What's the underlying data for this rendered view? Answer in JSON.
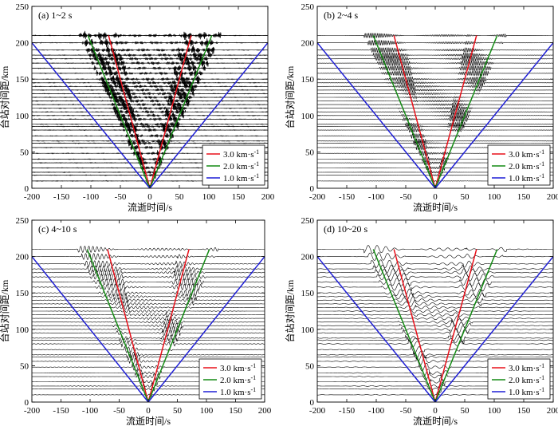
{
  "chart_data": [
    {
      "type": "line",
      "panel": "(a) 1~2 s",
      "xlabel": "流逝时间/s",
      "ylabel": "台站对间距/km",
      "xlim": [
        -200,
        200
      ],
      "ylim": [
        0,
        250
      ],
      "xticks": [
        "-200",
        "-150",
        "-100",
        "-50",
        "0",
        "50",
        "100",
        "150",
        "200"
      ],
      "yticks": [
        "0",
        "50",
        "100",
        "150",
        "200",
        "250"
      ],
      "legend": [
        {
          "label": "3.0 km·s-1",
          "color": "#e8101a",
          "velocity": 3.0
        },
        {
          "label": "2.0 km·s-1",
          "color": "#138a13",
          "velocity": 2.0
        },
        {
          "label": "1.0 km·s-1",
          "color": "#1f1fd6",
          "velocity": 1.0
        }
      ],
      "moveout_lines": [
        {
          "velocity": 3.0,
          "distance_range": [
            0,
            210
          ]
        },
        {
          "velocity": 2.0,
          "distance_range": [
            0,
            210
          ]
        },
        {
          "velocity": 1.0,
          "distance_range": [
            0,
            200
          ]
        }
      ],
      "trace_distances": [
        10,
        18,
        22,
        28,
        35,
        40,
        48,
        56,
        62,
        65,
        72,
        80,
        85,
        88,
        95,
        100,
        105,
        110,
        115,
        120,
        125,
        130,
        135,
        140,
        145,
        150,
        158,
        165,
        172,
        178,
        183,
        190,
        200,
        210
      ],
      "trace_style": "burst",
      "trace_amplitude": 7
    },
    {
      "type": "line",
      "panel": "(b) 2~4 s",
      "xlabel": "流逝时间/s",
      "ylabel": "台站对间距/km",
      "xlim": [
        -200,
        200
      ],
      "ylim": [
        0,
        250
      ],
      "xticks": [
        "-200",
        "-150",
        "-100",
        "-50",
        "0",
        "50",
        "100",
        "150",
        "200"
      ],
      "yticks": [
        "0",
        "50",
        "100",
        "150",
        "200",
        "250"
      ],
      "legend": [
        {
          "label": "3.0 km·s-1",
          "color": "#e8101a",
          "velocity": 3.0
        },
        {
          "label": "2.0 km·s-1",
          "color": "#138a13",
          "velocity": 2.0
        },
        {
          "label": "1.0 km·s-1",
          "color": "#1f1fd6",
          "velocity": 1.0
        }
      ],
      "moveout_lines": [
        {
          "velocity": 3.0,
          "distance_range": [
            0,
            210
          ]
        },
        {
          "velocity": 2.0,
          "distance_range": [
            0,
            210
          ]
        },
        {
          "velocity": 1.0,
          "distance_range": [
            0,
            200
          ]
        }
      ],
      "trace_distances": [
        10,
        18,
        22,
        28,
        35,
        40,
        48,
        56,
        62,
        65,
        72,
        80,
        85,
        88,
        95,
        100,
        105,
        110,
        115,
        120,
        125,
        130,
        135,
        140,
        145,
        150,
        158,
        165,
        172,
        178,
        183,
        190,
        200,
        210
      ],
      "trace_style": "oscillation",
      "trace_amplitude": 3,
      "trace_period": 3
    },
    {
      "type": "line",
      "panel": "(c) 4~10 s",
      "xlabel": "流逝时间/s",
      "ylabel": "台站对间距/km",
      "xlim": [
        -200,
        200
      ],
      "ylim": [
        0,
        250
      ],
      "xticks": [
        "-200",
        "-150",
        "-100",
        "-50",
        "0",
        "50",
        "100",
        "150",
        "200"
      ],
      "yticks": [
        "0",
        "50",
        "100",
        "150",
        "200",
        "250"
      ],
      "legend": [
        {
          "label": "3.0 km·s-1",
          "color": "#e8101a",
          "velocity": 3.0
        },
        {
          "label": "2.0 km·s-1",
          "color": "#138a13",
          "velocity": 2.0
        },
        {
          "label": "1.0 km·s-1",
          "color": "#1f1fd6",
          "velocity": 1.0
        }
      ],
      "moveout_lines": [
        {
          "velocity": 3.0,
          "distance_range": [
            0,
            210
          ]
        },
        {
          "velocity": 2.0,
          "distance_range": [
            0,
            210
          ]
        },
        {
          "velocity": 1.0,
          "distance_range": [
            0,
            200
          ]
        }
      ],
      "trace_distances": [
        10,
        18,
        22,
        28,
        35,
        40,
        48,
        56,
        62,
        65,
        72,
        80,
        85,
        88,
        95,
        100,
        105,
        110,
        115,
        120,
        125,
        130,
        135,
        140,
        145,
        150,
        158,
        165,
        172,
        178,
        183,
        190,
        200,
        210
      ],
      "trace_style": "oscillation",
      "trace_amplitude": 4,
      "trace_period": 7
    },
    {
      "type": "line",
      "panel": "(d) 10~20 s",
      "xlabel": "流逝时间/s",
      "ylabel": "台站对间距/km",
      "xlim": [
        -200,
        200
      ],
      "ylim": [
        0,
        250
      ],
      "xticks": [
        "-200",
        "-150",
        "-100",
        "-50",
        "0",
        "50",
        "100",
        "150",
        "200"
      ],
      "yticks": [
        "0",
        "50",
        "100",
        "150",
        "200",
        "250"
      ],
      "legend": [
        {
          "label": "3.0 km·s-1",
          "color": "#e8101a",
          "velocity": 3.0
        },
        {
          "label": "2.0 km·s-1",
          "color": "#138a13",
          "velocity": 2.0
        },
        {
          "label": "1.0 km·s-1",
          "color": "#1f1fd6",
          "velocity": 1.0
        }
      ],
      "moveout_lines": [
        {
          "velocity": 3.0,
          "distance_range": [
            0,
            210
          ]
        },
        {
          "velocity": 2.0,
          "distance_range": [
            0,
            210
          ]
        },
        {
          "velocity": 1.0,
          "distance_range": [
            0,
            200
          ]
        }
      ],
      "trace_distances": [
        10,
        18,
        22,
        28,
        35,
        40,
        48,
        56,
        62,
        65,
        72,
        80,
        85,
        88,
        95,
        100,
        105,
        110,
        115,
        120,
        125,
        130,
        135,
        140,
        145,
        150,
        158,
        165,
        172,
        178,
        183,
        190,
        200,
        210
      ],
      "trace_style": "oscillation",
      "trace_amplitude": 5,
      "trace_period": 15
    }
  ]
}
